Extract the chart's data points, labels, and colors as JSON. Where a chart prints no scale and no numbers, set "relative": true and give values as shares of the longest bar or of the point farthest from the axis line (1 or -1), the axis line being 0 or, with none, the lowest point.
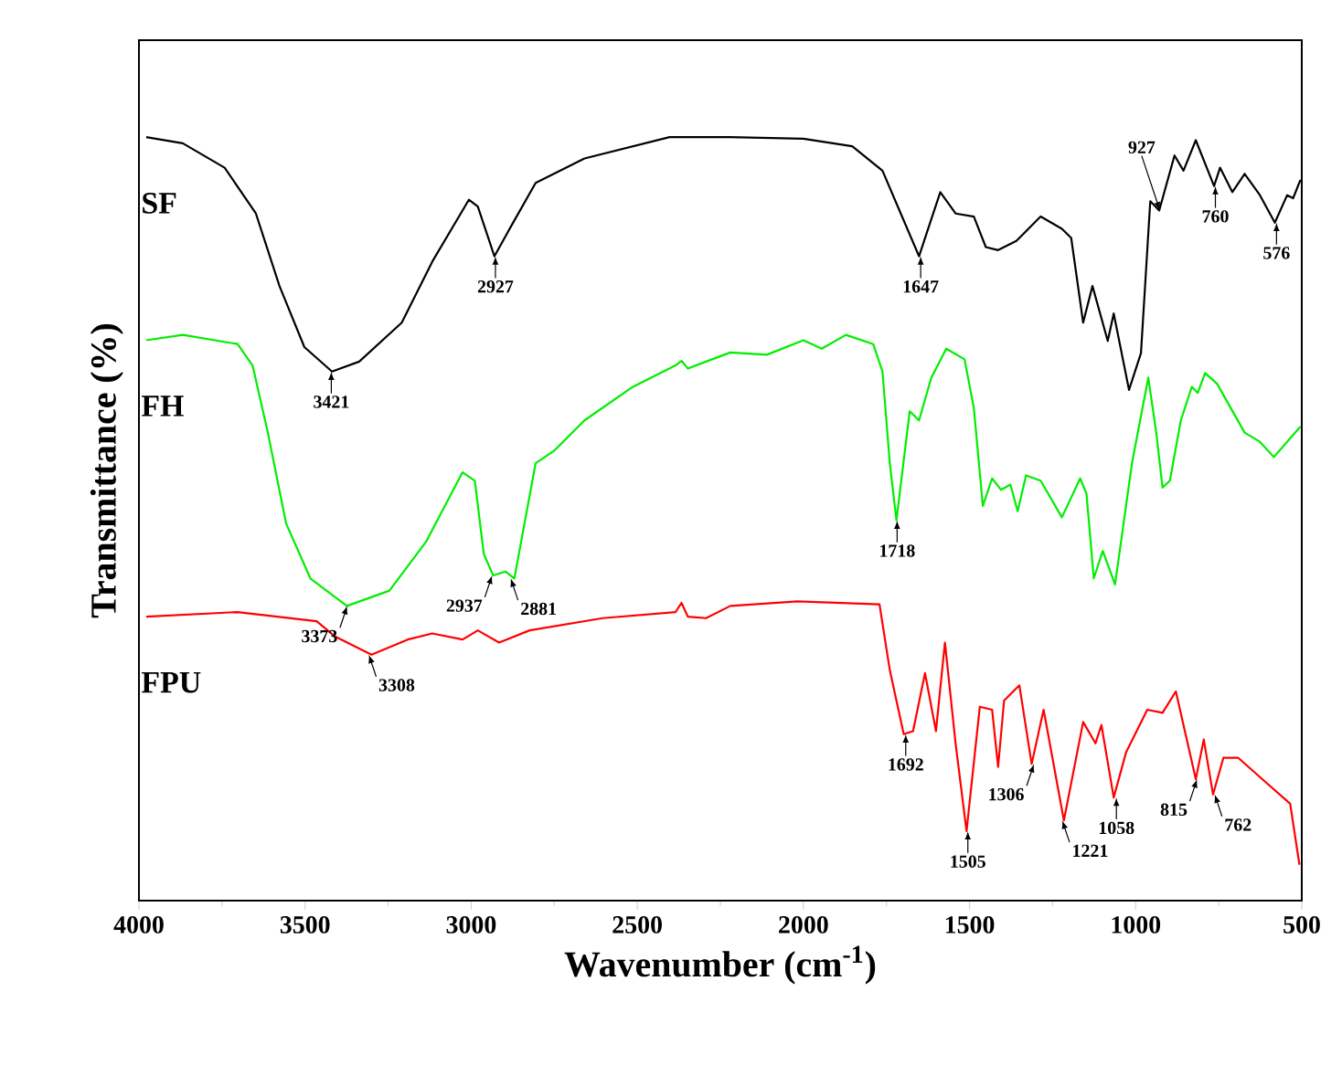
{
  "chart_data": {
    "type": "line",
    "xlabel": "Wavenumber (cm$^{-1}$)",
    "ylabel": "Transmittance (%)",
    "relative": true,
    "xlim": [
      4000,
      500
    ],
    "xticks": [
      4000,
      3500,
      3000,
      2500,
      2000,
      1500,
      1000,
      500
    ],
    "series": [
      {
        "name": "SF",
        "color": "#000000",
        "x": [
          3978,
          3868,
          3742,
          3648,
          3577,
          3502,
          3419,
          3337,
          3209,
          3117,
          3007,
          2980,
          2930,
          2879,
          2806,
          2659,
          2403,
          2220,
          2000,
          1853,
          1762,
          1707,
          1652,
          1588,
          1542,
          1487,
          1451,
          1414,
          1359,
          1286,
          1222,
          1194,
          1158,
          1130,
          1084,
          1066,
          1020,
          984,
          956,
          929,
          883,
          856,
          819,
          764,
          746,
          709,
          672,
          626,
          581,
          544,
          526,
          504
        ],
        "values": [
          1.0,
          0.992,
          0.96,
          0.9,
          0.805,
          0.725,
          0.693,
          0.706,
          0.757,
          0.837,
          0.918,
          0.909,
          0.844,
          0.884,
          0.94,
          0.972,
          1.0,
          1.0,
          0.998,
          0.988,
          0.956,
          0.9,
          0.844,
          0.928,
          0.9,
          0.896,
          0.856,
          0.852,
          0.864,
          0.896,
          0.88,
          0.868,
          0.757,
          0.805,
          0.733,
          0.769,
          0.669,
          0.717,
          0.916,
          0.904,
          0.976,
          0.956,
          0.996,
          0.936,
          0.96,
          0.928,
          0.952,
          0.924,
          0.888,
          0.924,
          0.92,
          0.944
        ]
      },
      {
        "name": "FH",
        "color": "#00ee00",
        "x": [
          3978,
          3868,
          3703,
          3658,
          3612,
          3557,
          3484,
          3374,
          3246,
          3136,
          3026,
          2989,
          2962,
          2934,
          2897,
          2870,
          2806,
          2751,
          2659,
          2513,
          2385,
          2367,
          2348,
          2220,
          2110,
          2000,
          1945,
          1872,
          1790,
          1762,
          1740,
          1720,
          1680,
          1652,
          1615,
          1570,
          1515,
          1487,
          1460,
          1432,
          1405,
          1377,
          1355,
          1330,
          1286,
          1222,
          1167,
          1148,
          1126,
          1099,
          1062,
          1011,
          962,
          938,
          919,
          897,
          864,
          831,
          813,
          791,
          755,
          672,
          626,
          584,
          504
        ],
        "values": [
          0.734,
          0.741,
          0.729,
          0.701,
          0.613,
          0.494,
          0.422,
          0.386,
          0.406,
          0.47,
          0.561,
          0.55,
          0.454,
          0.426,
          0.431,
          0.422,
          0.573,
          0.589,
          0.629,
          0.673,
          0.701,
          0.707,
          0.697,
          0.718,
          0.715,
          0.734,
          0.723,
          0.741,
          0.729,
          0.693,
          0.573,
          0.498,
          0.641,
          0.629,
          0.685,
          0.723,
          0.709,
          0.645,
          0.517,
          0.553,
          0.538,
          0.545,
          0.51,
          0.557,
          0.55,
          0.502,
          0.553,
          0.533,
          0.422,
          0.458,
          0.414,
          0.573,
          0.685,
          0.613,
          0.541,
          0.55,
          0.629,
          0.673,
          0.665,
          0.691,
          0.677,
          0.613,
          0.601,
          0.581,
          0.621
        ]
      },
      {
        "name": "FPU",
        "color": "#ff0000",
        "x": [
          3978,
          3703,
          3465,
          3410,
          3300,
          3191,
          3117,
          3026,
          2980,
          2916,
          2824,
          2604,
          2385,
          2367,
          2348,
          2293,
          2220,
          2018,
          1771,
          1740,
          1698,
          1670,
          1634,
          1601,
          1574,
          1542,
          1509,
          1469,
          1432,
          1414,
          1396,
          1350,
          1313,
          1277,
          1216,
          1158,
          1121,
          1103,
          1066,
          1029,
          965,
          919,
          879,
          819,
          795,
          767,
          736,
          691,
          608,
          535,
          507
        ],
        "values": [
          0.372,
          0.378,
          0.366,
          0.346,
          0.322,
          0.342,
          0.35,
          0.342,
          0.354,
          0.338,
          0.354,
          0.37,
          0.378,
          0.39,
          0.372,
          0.37,
          0.386,
          0.392,
          0.388,
          0.302,
          0.218,
          0.222,
          0.298,
          0.222,
          0.338,
          0.206,
          0.091,
          0.254,
          0.25,
          0.175,
          0.262,
          0.282,
          0.179,
          0.25,
          0.105,
          0.234,
          0.206,
          0.23,
          0.135,
          0.194,
          0.25,
          0.246,
          0.274,
          0.159,
          0.211,
          0.139,
          0.187,
          0.187,
          0.155,
          0.127,
          0.047
        ]
      }
    ],
    "annotations": [
      {
        "text": "3421",
        "x": 3421,
        "y": 0.693
      },
      {
        "text": "2927",
        "x": 2927,
        "y": 0.844
      },
      {
        "text": "1647",
        "x": 1647,
        "y": 0.844
      },
      {
        "text": "927",
        "x": 927,
        "y": 0.904
      },
      {
        "text": "760",
        "x": 760,
        "y": 0.936
      },
      {
        "text": "576",
        "x": 576,
        "y": 0.888
      },
      {
        "text": "3373",
        "x": 3373,
        "y": 0.386
      },
      {
        "text": "2937",
        "x": 2937,
        "y": 0.426
      },
      {
        "text": "2881",
        "x": 2881,
        "y": 0.422
      },
      {
        "text": "1718",
        "x": 1718,
        "y": 0.498
      },
      {
        "text": "3308",
        "x": 3308,
        "y": 0.322
      },
      {
        "text": "1692",
        "x": 1692,
        "y": 0.218
      },
      {
        "text": "1505",
        "x": 1505,
        "y": 0.091
      },
      {
        "text": "1306",
        "x": 1306,
        "y": 0.179
      },
      {
        "text": "1221",
        "x": 1221,
        "y": 0.105
      },
      {
        "text": "1058",
        "x": 1058,
        "y": 0.135
      },
      {
        "text": "815",
        "x": 815,
        "y": 0.159
      },
      {
        "text": "762",
        "x": 762,
        "y": 0.139
      }
    ]
  }
}
